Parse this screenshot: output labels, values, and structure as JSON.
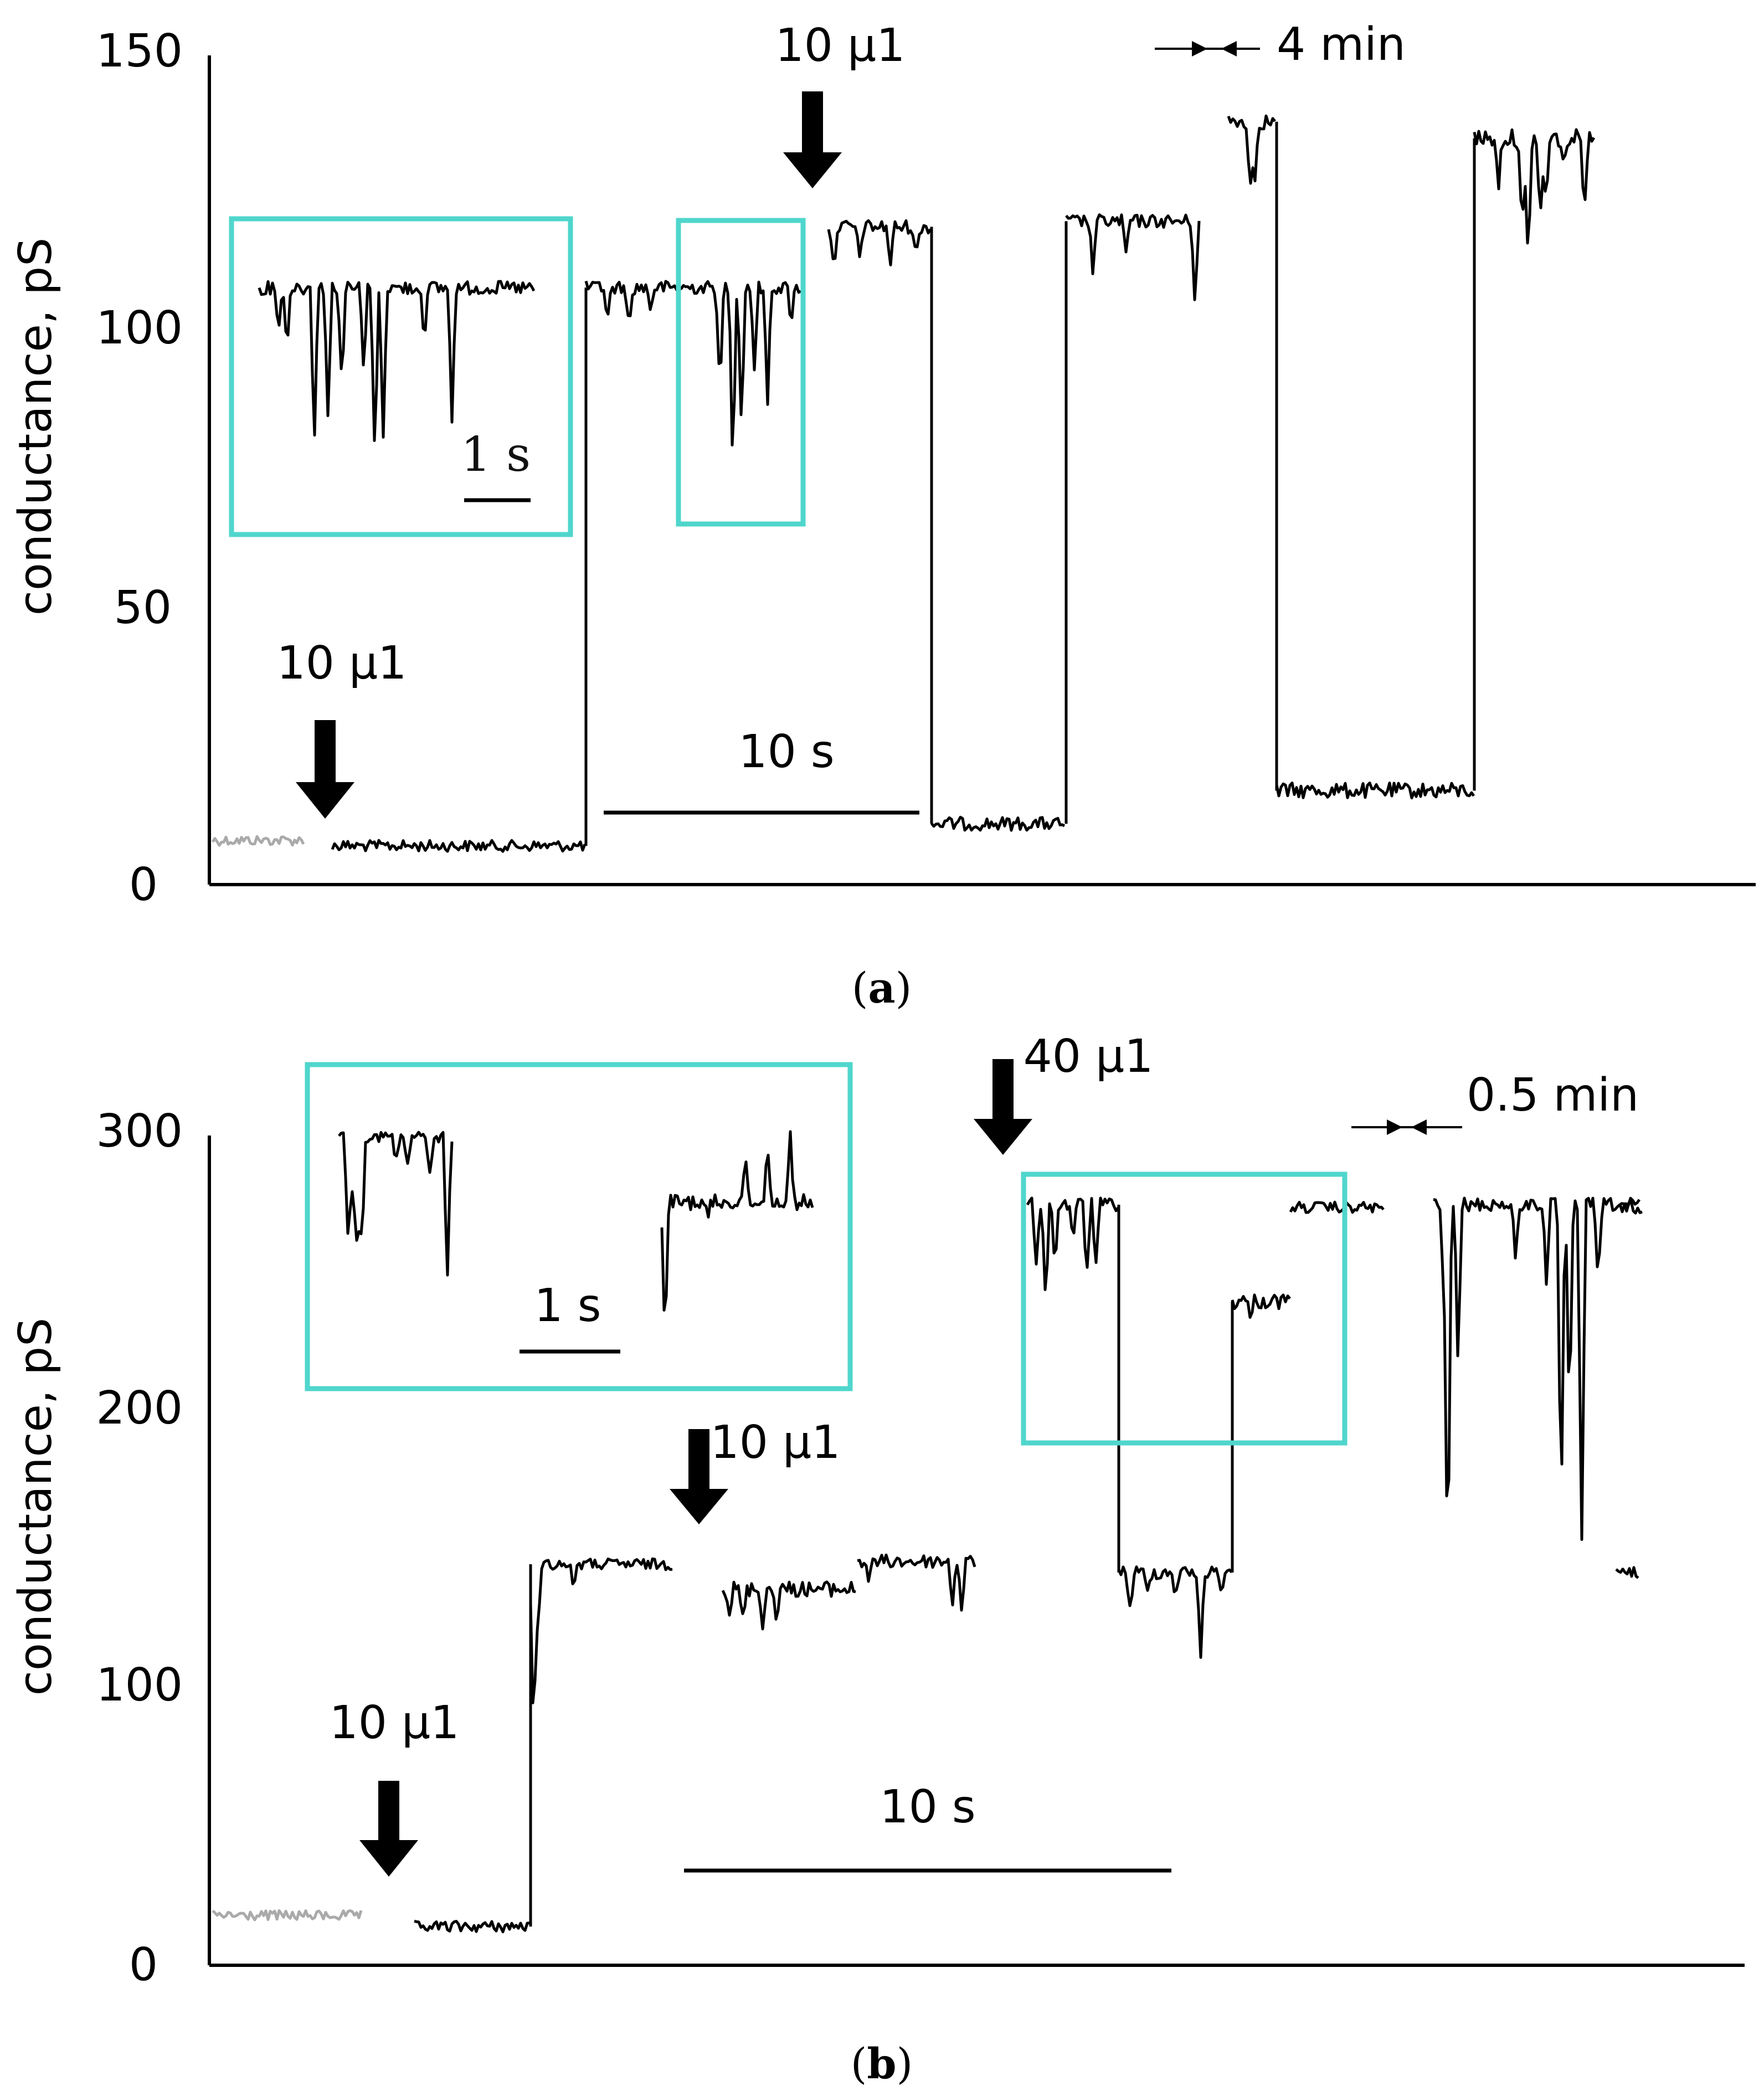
{
  "chart_data": [
    {
      "panel": "a",
      "type": "line",
      "caption": "(a)",
      "caption_letter": "a",
      "ylabel": "conductance, pS",
      "ylim": [
        0,
        150
      ],
      "yticks": [
        "0",
        "50",
        "100",
        "150"
      ],
      "levels_pS": {
        "baseline": 8,
        "first_segment": 7,
        "open_state_1": 108,
        "after_second_addition": 119,
        "closed_state_1": 11,
        "reopen_state_1": 120,
        "open_state_2": 138,
        "closed_state_2": 17,
        "reopen_state_2": 135
      },
      "annotations": {
        "addition_1": "10 µ1",
        "addition_2": "10 µ1",
        "time_bar": "10 s",
        "time_gap": "4 min",
        "inset_scale": "1 s"
      },
      "colors": {
        "trace": "#000000",
        "baseline": "#aaaaaa",
        "highlight_box": "#4fd6cc"
      }
    },
    {
      "panel": "b",
      "type": "line",
      "caption": "(b)",
      "caption_letter": "b",
      "ylabel": "conductance, pS",
      "ylim": [
        0,
        300
      ],
      "yticks": [
        "0",
        "100",
        "200",
        "300"
      ],
      "levels_pS": {
        "baseline": 18,
        "first_segment": 14,
        "open_state_1": 145,
        "after_second_addition": 136,
        "open_state_2": 146,
        "high_state": 275,
        "intermediate_state": 240,
        "low_state": 142,
        "final_state": 274
      },
      "annotations": {
        "addition_1": "10 µ1",
        "addition_2": "10 µ1",
        "addition_3": "40 µ1",
        "time_bar": "10 s",
        "time_gap": "0.5 min",
        "inset_scale": "1 s"
      },
      "colors": {
        "trace": "#000000",
        "baseline": "#aaaaaa",
        "highlight_box": "#4fd6cc"
      }
    }
  ]
}
